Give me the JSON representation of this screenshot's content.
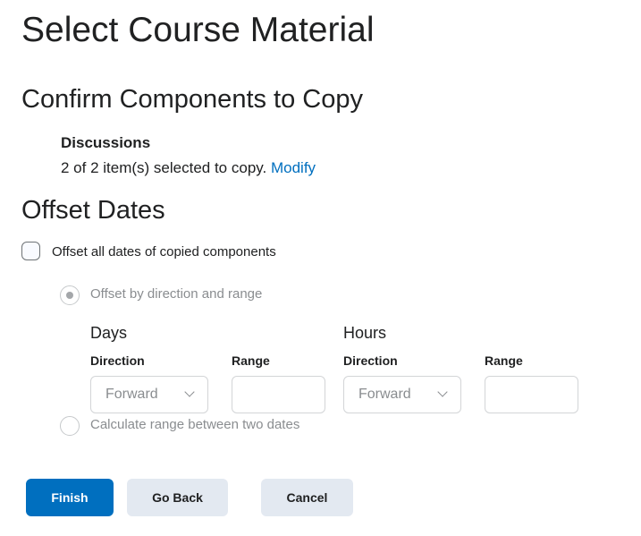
{
  "page_title": "Select Course Material",
  "confirm": {
    "heading": "Confirm Components to Copy",
    "component_name": "Discussions",
    "summary": "2 of 2 item(s) selected to copy.",
    "modify_link": "Modify"
  },
  "offset": {
    "heading": "Offset Dates",
    "checkbox_label": "Offset all dates of copied components",
    "checkbox_checked": false,
    "radio_direction_label": "Offset by direction and range",
    "radio_direction_selected": true,
    "days": {
      "title": "Days",
      "direction_label": "Direction",
      "direction_value": "Forward",
      "range_label": "Range",
      "range_value": ""
    },
    "hours": {
      "title": "Hours",
      "direction_label": "Direction",
      "direction_value": "Forward",
      "range_label": "Range",
      "range_value": ""
    },
    "radio_between_label": "Calculate range between two dates",
    "radio_between_selected": false
  },
  "buttons": {
    "finish": "Finish",
    "go_back": "Go Back",
    "cancel": "Cancel"
  },
  "colors": {
    "primary": "#006fbf",
    "secondary": "#e3e9f1",
    "link": "#006fbf"
  }
}
